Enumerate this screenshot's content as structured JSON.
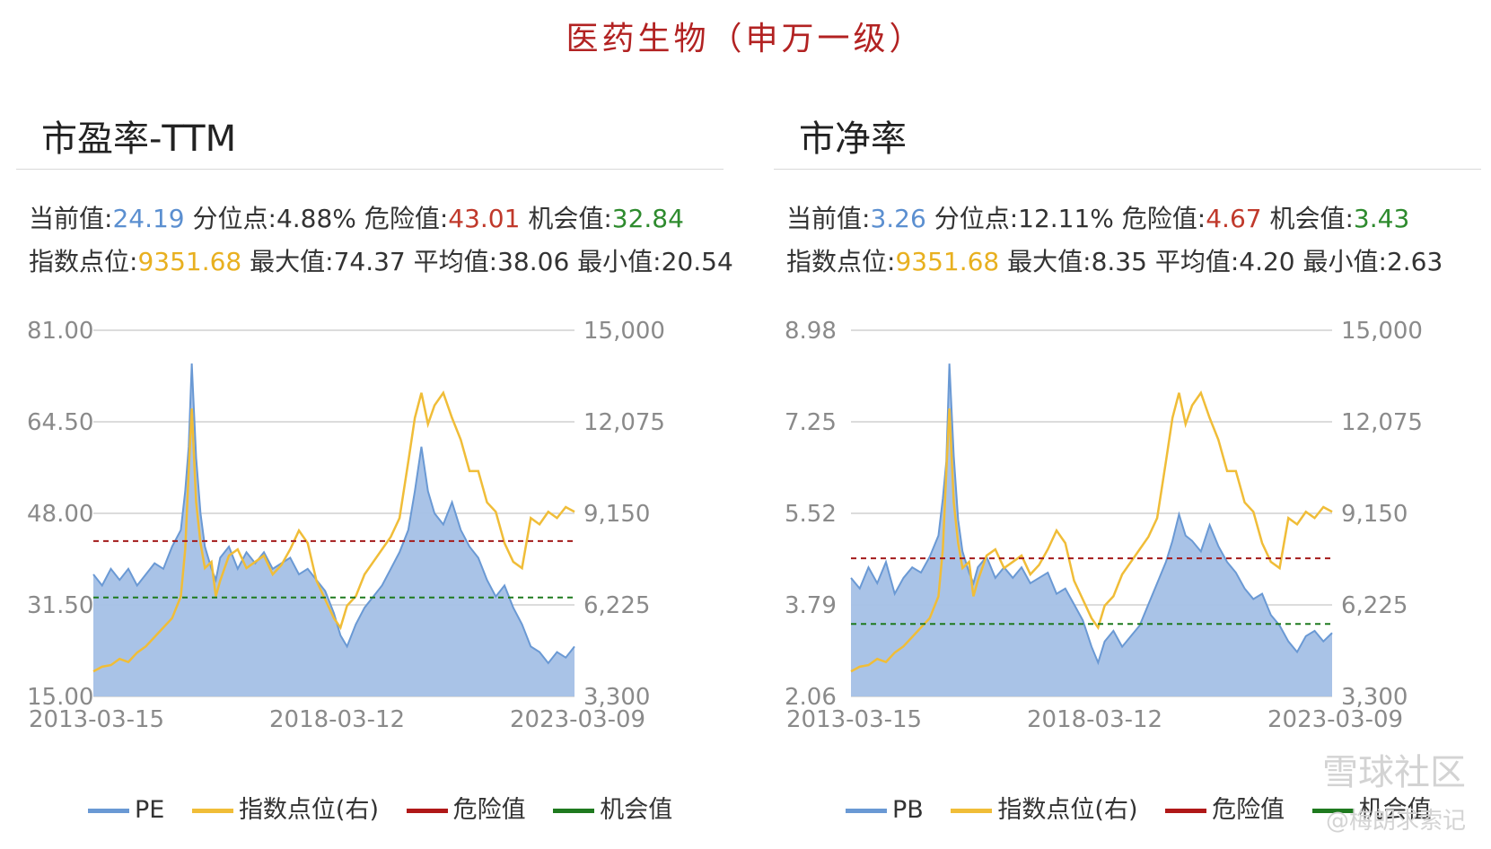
{
  "page_title": "医药生物（申万一级）",
  "panels": [
    {
      "title": "市盈率-TTM",
      "stats": {
        "current_label": "当前值:",
        "current_value": "24.19",
        "pct_label": "分位点:",
        "pct_value": "4.88%",
        "danger_label": "危险值:",
        "danger_value": "43.01",
        "opp_label": "机会值:",
        "opp_value": "32.84",
        "index_label": "指数点位:",
        "index_value": "9351.68",
        "max_label": "最大值:",
        "max_value": "74.37",
        "avg_label": "平均值:",
        "avg_value": "38.06",
        "min_label": "最小值:",
        "min_value": "20.54"
      },
      "legend": [
        "PE",
        "指数点位(右)",
        "危险值",
        "机会值"
      ]
    },
    {
      "title": "市净率",
      "stats": {
        "current_label": "当前值:",
        "current_value": "3.26",
        "pct_label": "分位点:",
        "pct_value": "12.11%",
        "danger_label": "危险值:",
        "danger_value": "4.67",
        "opp_label": "机会值:",
        "opp_value": "3.43",
        "index_label": "指数点位:",
        "index_value": "9351.68",
        "max_label": "最大值:",
        "max_value": "8.35",
        "avg_label": "平均值:",
        "avg_value": "4.20",
        "min_label": "最小值:",
        "min_value": "2.63"
      },
      "legend": [
        "PB",
        "指数点位(右)",
        "危险值",
        "机会值"
      ]
    }
  ],
  "colors": {
    "valuation_line": "#6a99d4",
    "valuation_fill": "#a4c0e6",
    "index_line": "#f0bd38",
    "danger_line": "#a31a1a",
    "opportunity_line": "#1f7a1f",
    "gridline": "#d0d0d0"
  },
  "watermark": {
    "line1": "雪球社区",
    "line2": "@梅朗求索记"
  },
  "chart_data": [
    {
      "type": "area",
      "title": "市盈率-TTM",
      "x_ticks": [
        "2013-03-15",
        "2018-03-12",
        "2023-03-09"
      ],
      "y_left_ticks": [
        "81.00",
        "64.50",
        "48.00",
        "31.50",
        "15.00"
      ],
      "y_left_range": [
        15,
        81
      ],
      "y_right_ticks": [
        "15,000",
        "12,075",
        "9,150",
        "6,225",
        "3,300"
      ],
      "y_right_range": [
        3300,
        15000
      ],
      "danger_value": 43.01,
      "opportunity_value": 32.84,
      "series": [
        {
          "name": "PE",
          "axis": "left",
          "type": "area",
          "x": [
            2013.2,
            2013.4,
            2013.6,
            2013.8,
            2014.0,
            2014.2,
            2014.4,
            2014.6,
            2014.8,
            2015.0,
            2015.2,
            2015.3,
            2015.38,
            2015.45,
            2015.55,
            2015.65,
            2015.75,
            2015.9,
            2016.0,
            2016.1,
            2016.3,
            2016.5,
            2016.7,
            2016.9,
            2017.1,
            2017.3,
            2017.5,
            2017.7,
            2017.9,
            2018.1,
            2018.3,
            2018.5,
            2018.7,
            2018.85,
            2019.0,
            2019.2,
            2019.4,
            2019.6,
            2019.8,
            2020.0,
            2020.2,
            2020.4,
            2020.55,
            2020.7,
            2020.85,
            2021.0,
            2021.2,
            2021.4,
            2021.6,
            2021.8,
            2022.0,
            2022.2,
            2022.4,
            2022.6,
            2022.8,
            2023.0,
            2023.2,
            2023.4,
            2023.6,
            2023.8,
            2024.0,
            2024.2
          ],
          "values": [
            37,
            35,
            38,
            36,
            38,
            35,
            37,
            39,
            38,
            42,
            45,
            52,
            60,
            75,
            58,
            48,
            42,
            38,
            36,
            40,
            42,
            38,
            41,
            39,
            41,
            38,
            39,
            40,
            37,
            38,
            36,
            34,
            30,
            26,
            24,
            28,
            31,
            33,
            35,
            38,
            41,
            45,
            52,
            60,
            52,
            48,
            46,
            50,
            45,
            42,
            40,
            36,
            33,
            35,
            31,
            28,
            24,
            23,
            21,
            23,
            22,
            24
          ]
        },
        {
          "name": "指数点位(右)",
          "axis": "right",
          "type": "line",
          "x": [
            2013.2,
            2013.4,
            2013.6,
            2013.8,
            2014.0,
            2014.2,
            2014.4,
            2014.6,
            2014.8,
            2015.0,
            2015.2,
            2015.3,
            2015.38,
            2015.45,
            2015.55,
            2015.65,
            2015.75,
            2015.9,
            2016.0,
            2016.1,
            2016.3,
            2016.5,
            2016.7,
            2016.9,
            2017.1,
            2017.3,
            2017.5,
            2017.7,
            2017.9,
            2018.1,
            2018.3,
            2018.5,
            2018.7,
            2018.85,
            2019.0,
            2019.2,
            2019.4,
            2019.6,
            2019.8,
            2020.0,
            2020.2,
            2020.4,
            2020.55,
            2020.7,
            2020.85,
            2021.0,
            2021.2,
            2021.4,
            2021.6,
            2021.8,
            2022.0,
            2022.2,
            2022.4,
            2022.6,
            2022.8,
            2023.0,
            2023.2,
            2023.4,
            2023.6,
            2023.8,
            2024.0,
            2024.2
          ],
          "values": [
            4100,
            4250,
            4300,
            4500,
            4400,
            4700,
            4900,
            5200,
            5500,
            5800,
            6500,
            8000,
            10500,
            12500,
            9500,
            8200,
            7400,
            7600,
            6500,
            7000,
            7800,
            8000,
            7400,
            7600,
            7800,
            7200,
            7500,
            8000,
            8600,
            8200,
            7000,
            6400,
            5800,
            5500,
            6200,
            6500,
            7200,
            7600,
            8000,
            8400,
            9000,
            10800,
            12200,
            13000,
            12000,
            12600,
            13000,
            12200,
            11500,
            10500,
            10500,
            9500,
            9200,
            8200,
            7600,
            7400,
            9000,
            8800,
            9200,
            9000,
            9350,
            9200
          ]
        },
        {
          "name": "危险值",
          "axis": "left",
          "type": "constant",
          "value": 43.01
        },
        {
          "name": "机会值",
          "axis": "left",
          "type": "constant",
          "value": 32.84
        }
      ],
      "x_range": [
        2013.2,
        2024.2
      ],
      "legend_position": "bottom",
      "grid": "horizontal"
    },
    {
      "type": "area",
      "title": "市净率",
      "x_ticks": [
        "2013-03-15",
        "2018-03-12",
        "2023-03-09"
      ],
      "y_left_ticks": [
        "8.98",
        "7.25",
        "5.52",
        "3.79",
        "2.06"
      ],
      "y_left_range": [
        2.06,
        8.98
      ],
      "y_right_ticks": [
        "15,000",
        "12,075",
        "9,150",
        "6,225",
        "3,300"
      ],
      "y_right_range": [
        3300,
        15000
      ],
      "danger_value": 4.67,
      "opportunity_value": 3.43,
      "series": [
        {
          "name": "PB",
          "axis": "left",
          "type": "area",
          "x": [
            2013.2,
            2013.4,
            2013.6,
            2013.8,
            2014.0,
            2014.2,
            2014.4,
            2014.6,
            2014.8,
            2015.0,
            2015.2,
            2015.3,
            2015.38,
            2015.45,
            2015.55,
            2015.65,
            2015.75,
            2015.9,
            2016.0,
            2016.1,
            2016.3,
            2016.5,
            2016.7,
            2016.9,
            2017.1,
            2017.3,
            2017.5,
            2017.7,
            2017.9,
            2018.1,
            2018.3,
            2018.5,
            2018.7,
            2018.85,
            2019.0,
            2019.2,
            2019.4,
            2019.6,
            2019.8,
            2020.0,
            2020.2,
            2020.4,
            2020.55,
            2020.7,
            2020.85,
            2021.0,
            2021.2,
            2021.4,
            2021.6,
            2021.8,
            2022.0,
            2022.2,
            2022.4,
            2022.6,
            2022.8,
            2023.0,
            2023.2,
            2023.4,
            2023.6,
            2023.8,
            2024.0,
            2024.2
          ],
          "values": [
            4.3,
            4.1,
            4.5,
            4.2,
            4.6,
            4.0,
            4.3,
            4.5,
            4.4,
            4.7,
            5.1,
            5.8,
            6.5,
            8.35,
            6.6,
            5.4,
            4.8,
            4.4,
            4.2,
            4.5,
            4.7,
            4.3,
            4.5,
            4.3,
            4.5,
            4.2,
            4.3,
            4.4,
            4.0,
            4.1,
            3.8,
            3.5,
            3.0,
            2.7,
            3.1,
            3.3,
            3.0,
            3.2,
            3.4,
            3.8,
            4.2,
            4.6,
            5.0,
            5.5,
            5.1,
            5.0,
            4.8,
            5.3,
            4.9,
            4.6,
            4.4,
            4.1,
            3.9,
            4.0,
            3.6,
            3.4,
            3.1,
            2.9,
            3.2,
            3.3,
            3.1,
            3.26
          ]
        },
        {
          "name": "指数点位(右)",
          "axis": "right",
          "type": "line",
          "x": [
            2013.2,
            2013.4,
            2013.6,
            2013.8,
            2014.0,
            2014.2,
            2014.4,
            2014.6,
            2014.8,
            2015.0,
            2015.2,
            2015.3,
            2015.38,
            2015.45,
            2015.55,
            2015.65,
            2015.75,
            2015.9,
            2016.0,
            2016.1,
            2016.3,
            2016.5,
            2016.7,
            2016.9,
            2017.1,
            2017.3,
            2017.5,
            2017.7,
            2017.9,
            2018.1,
            2018.3,
            2018.5,
            2018.7,
            2018.85,
            2019.0,
            2019.2,
            2019.4,
            2019.6,
            2019.8,
            2020.0,
            2020.2,
            2020.4,
            2020.55,
            2020.7,
            2020.85,
            2021.0,
            2021.2,
            2021.4,
            2021.6,
            2021.8,
            2022.0,
            2022.2,
            2022.4,
            2022.6,
            2022.8,
            2023.0,
            2023.2,
            2023.4,
            2023.6,
            2023.8,
            2024.0,
            2024.2
          ],
          "values": [
            4100,
            4250,
            4300,
            4500,
            4400,
            4700,
            4900,
            5200,
            5500,
            5800,
            6500,
            8000,
            10500,
            12500,
            9500,
            8200,
            7400,
            7600,
            6500,
            7000,
            7800,
            8000,
            7400,
            7600,
            7800,
            7200,
            7500,
            8000,
            8600,
            8200,
            7000,
            6400,
            5800,
            5500,
            6200,
            6500,
            7200,
            7600,
            8000,
            8400,
            9000,
            10800,
            12200,
            13000,
            12000,
            12600,
            13000,
            12200,
            11500,
            10500,
            10500,
            9500,
            9200,
            8200,
            7600,
            7400,
            9000,
            8800,
            9200,
            9000,
            9350,
            9200
          ]
        },
        {
          "name": "危险值",
          "axis": "left",
          "type": "constant",
          "value": 4.67
        },
        {
          "name": "机会值",
          "axis": "left",
          "type": "constant",
          "value": 3.43
        }
      ],
      "x_range": [
        2013.2,
        2024.2
      ],
      "legend_position": "bottom",
      "grid": "horizontal"
    }
  ]
}
